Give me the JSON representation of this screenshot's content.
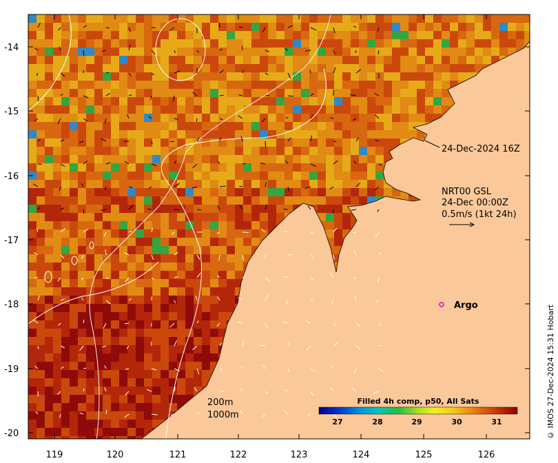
{
  "map": {
    "x_ticks": [
      "119",
      "120",
      "121",
      "122",
      "123",
      "124",
      "125",
      "126"
    ],
    "y_ticks": [
      "-14",
      "-15",
      "-16",
      "-17",
      "-18",
      "-19",
      "-20"
    ],
    "lon_range": [
      118.6,
      126.7
    ],
    "lat_range": [
      -20.1,
      -13.5
    ],
    "land_color": "#fbc89a",
    "sst_colors": [
      "#8c0a0a",
      "#b82a0a",
      "#d4520d",
      "#e27812",
      "#eda016",
      "#f3c51c",
      "#f5e826",
      "#22c04a",
      "#1f9ee8"
    ]
  },
  "annotations": {
    "timestamp": "24-Dec-2024 16Z",
    "current_title": "NRT00 GSL",
    "current_time": "24-Dec 00:00Z",
    "current_scale": "0.5m/s (1kt 24h)",
    "argo_label": "Argo",
    "depth_200": "200m",
    "depth_1000": "1000m"
  },
  "legend": {
    "title": "Filled 4h comp, p50, All Sats",
    "ticks": [
      "27",
      "28",
      "29",
      "30",
      "31"
    ],
    "range": [
      26.4,
      31.6
    ]
  },
  "credit": "© IMOS 27-Dec-2024 15:31 Hobart"
}
